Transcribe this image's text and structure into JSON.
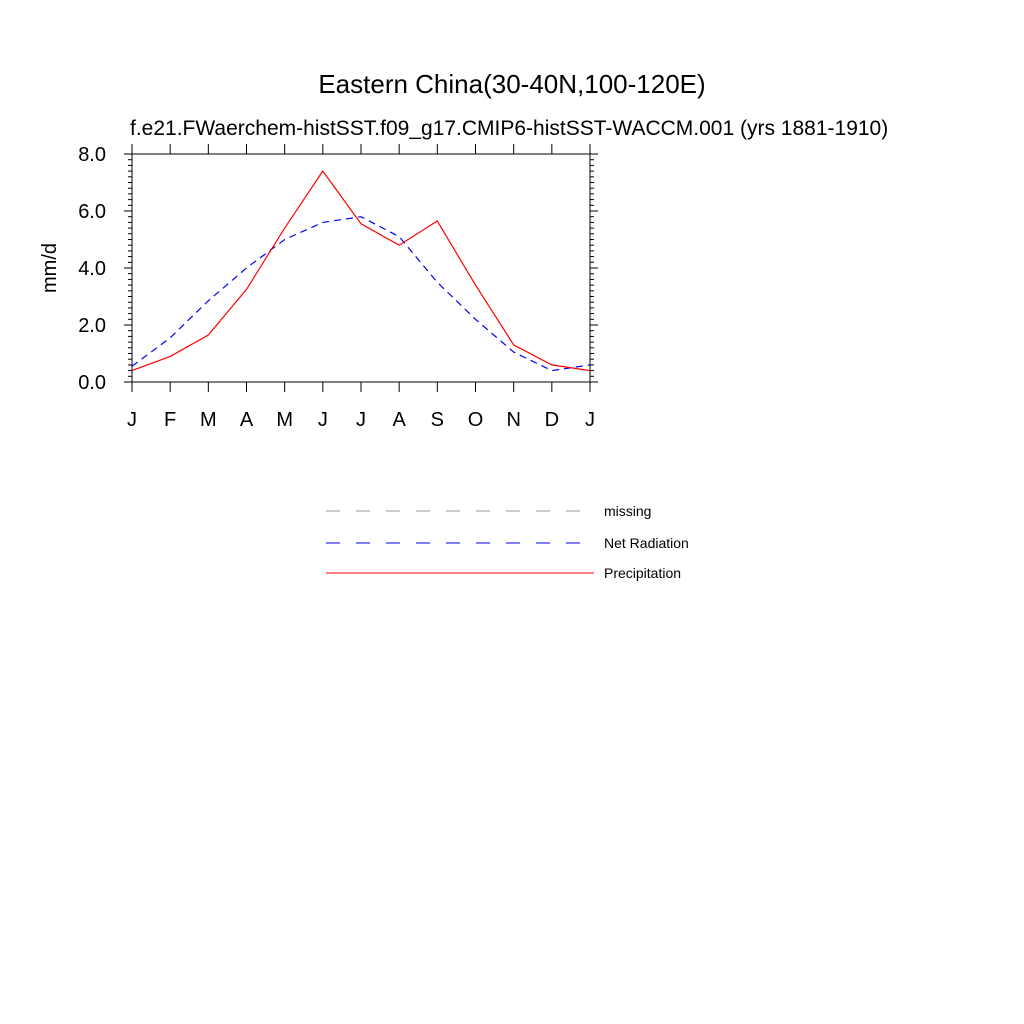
{
  "chart_data": {
    "type": "line",
    "title": "Eastern China(30-40N,100-120E)",
    "subtitle": "f.e21.FWaerchem-histSST.f09_g17.CMIP6-histSST-WACCM.001 (yrs 1881-1910)",
    "ylabel": "mm/d",
    "xlabel": "",
    "ylim": [
      0,
      8
    ],
    "yticks": [
      "0.0",
      "2.0",
      "4.0",
      "6.0",
      "8.0"
    ],
    "categories": [
      "J",
      "F",
      "M",
      "A",
      "M",
      "J",
      "J",
      "A",
      "S",
      "O",
      "N",
      "D",
      "J"
    ],
    "grid": false,
    "legend_position": "bottom",
    "series": [
      {
        "name": "Net Radiation",
        "color": "#0000ff",
        "dash": "dashed",
        "values": [
          0.55,
          1.55,
          2.85,
          4.0,
          5.0,
          5.6,
          5.8,
          5.1,
          3.5,
          2.2,
          1.05,
          0.4,
          0.6
        ]
      },
      {
        "name": "Precipitation",
        "color": "#ff0000",
        "dash": "solid",
        "values": [
          0.4,
          0.9,
          1.65,
          3.25,
          5.4,
          7.4,
          5.55,
          4.8,
          5.65,
          3.4,
          1.3,
          0.6,
          0.4
        ]
      }
    ],
    "legend": [
      {
        "label": "missing",
        "color": "#999999",
        "dash": "dashed"
      },
      {
        "label": "Net Radiation",
        "color": "#0000ff",
        "dash": "dashed"
      },
      {
        "label": "Precipitation",
        "color": "#ff0000",
        "dash": "solid"
      }
    ]
  }
}
